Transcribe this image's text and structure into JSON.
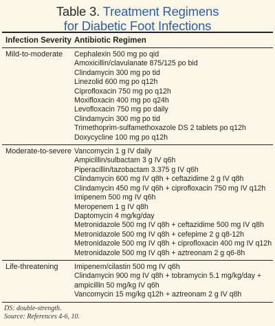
{
  "title": {
    "label": "Table 3.",
    "line1": "Treatment Regimens",
    "line2": "for Diabetic Foot Infections"
  },
  "header": {
    "col1": "Infection Severity",
    "col2": "Antibiotic Regimen"
  },
  "groups": [
    {
      "severity": "Mild-to-moderate",
      "regimens": [
        "Cephalexin 500 mg po qid",
        "Amoxicillin/clavulanate 875/125 po bid",
        "Clindamycin 300 mg po tid",
        "Linezolid 600 mg po q12h",
        "Ciprofloxacin 750 mg po q12h",
        "Moxifloxacin 400 mg po q24h",
        "Levofloxacin 750 mg po daily",
        "Clindamycin 300 mg po tid",
        "Trimethoprim-sulfamethoxazole DS 2 tablets po q12h",
        "Doxycycline 100 mg po q12h"
      ]
    },
    {
      "severity": "Moderate-to-severe",
      "regimens": [
        "Vancomycin 1 g IV daily",
        "Ampicillin/sulbactam 3 g IV q6h",
        "Piperacillin/tazobactam 3.375 g IV q6h",
        "Clindamycin 600 mg IV q8h + ceftazidime 2 g IV q8h",
        "Clindamycin 450 mg IV q6h + ciprofloxacin 750 mg IV q12h",
        "Imipenem 500 mg IV q6h",
        "Meropenem 1 g IV q8h",
        "Daptomycin 4 mg/kg/day",
        "Metronidazole 500 mg IV q8h + ceftazidime 500 mg IV q8h",
        "Metronidazole 500 mg IV q8h + cefepime 2 g q8-12h",
        "Metronidazole 500 mg IV q8h + ciprofloxacin 400 mg IV q12h",
        "Metronidazole 500 mg IV q8h + aztreonam 2 g q6-8h"
      ]
    },
    {
      "severity": "Life-threatening",
      "regimens": [
        "Imipenem/cilastin 500 mg IV q6h",
        "Clindamycin 900 mg IV q8h + tobramycin 5.1 mg/kg/day + ampicillin 50 mg/kg IV q6h",
        "Vancomycin 15 mg/kg q12h + aztreonam 2 g IV q8h"
      ]
    }
  ],
  "footer": {
    "note": "DS: double-strength.",
    "source": "Source: References 4-6, 10."
  }
}
